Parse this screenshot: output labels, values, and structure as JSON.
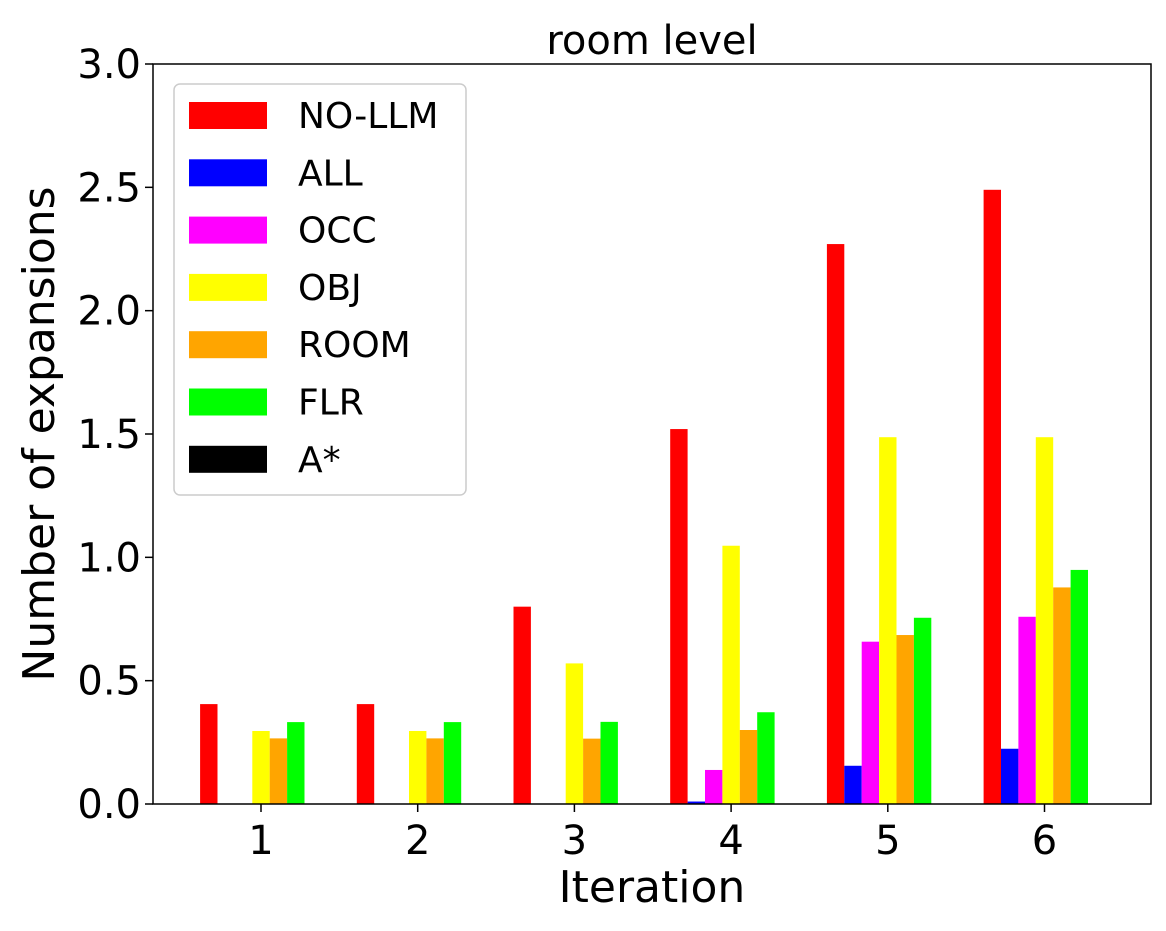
{
  "chart_data": {
    "type": "bar",
    "title": "room level",
    "xlabel": "Iteration",
    "ylabel": "Number of expansions",
    "categories": [
      "1",
      "2",
      "3",
      "4",
      "5",
      "6"
    ],
    "ylim": [
      0,
      3.0
    ],
    "yticks": [
      "0.0",
      "0.5",
      "1.0",
      "1.5",
      "2.0",
      "2.5",
      "3.0"
    ],
    "grid": false,
    "legend_position": "upper left",
    "series": [
      {
        "name": "NO-LLM",
        "color": "#ff0000",
        "values": [
          0.405,
          0.405,
          0.8,
          1.52,
          2.27,
          2.49
        ]
      },
      {
        "name": "ALL",
        "color": "#0000ff",
        "values": [
          0.0,
          0.0,
          0.0,
          0.01,
          0.155,
          0.224
        ]
      },
      {
        "name": "OCC",
        "color": "#ff00ff",
        "values": [
          0.0,
          0.0,
          0.0,
          0.138,
          0.658,
          0.759
        ]
      },
      {
        "name": "OBJ",
        "color": "#ffff00",
        "values": [
          0.296,
          0.296,
          0.57,
          1.047,
          1.487,
          1.487
        ]
      },
      {
        "name": "ROOM",
        "color": "#ffa500",
        "values": [
          0.266,
          0.266,
          0.265,
          0.3,
          0.685,
          0.878
        ]
      },
      {
        "name": "FLR",
        "color": "#00ff00",
        "values": [
          0.332,
          0.332,
          0.333,
          0.372,
          0.755,
          0.949
        ]
      },
      {
        "name": "A*",
        "color": "#000000",
        "values": [
          0.0,
          0.0,
          0.0,
          0.0,
          0.0,
          0.0
        ]
      }
    ]
  }
}
